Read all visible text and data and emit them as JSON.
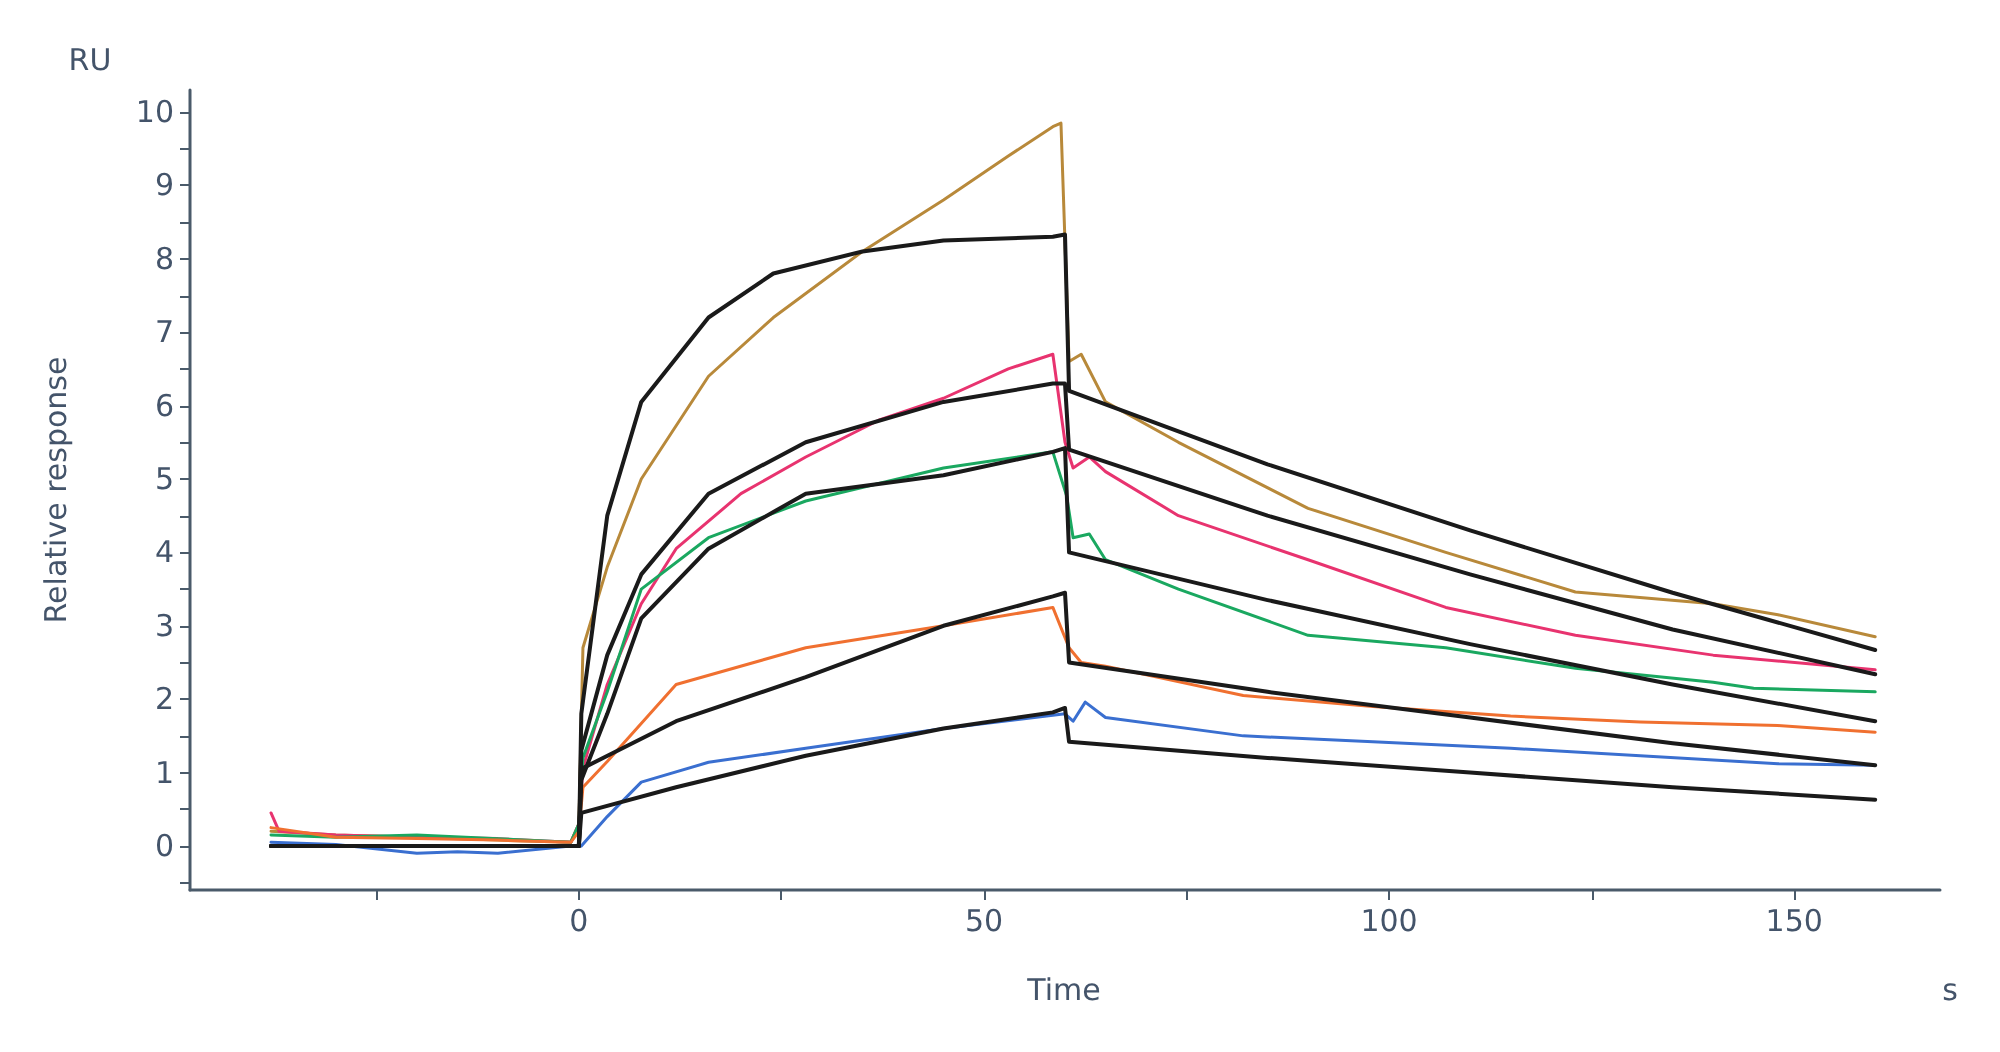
{
  "chart_data": {
    "type": "line",
    "xlabel": "Time",
    "ylabel": "Relative response",
    "annotations": [
      "RU",
      "s"
    ],
    "xlim": [
      -48,
      168
    ],
    "ylim": [
      -0.6,
      10.3
    ],
    "xticks": [
      {
        "value": -25,
        "label": null
      },
      0,
      {
        "value": 25,
        "label": null
      },
      50,
      {
        "value": 75,
        "label": null
      },
      100,
      {
        "value": 125,
        "label": null
      },
      150
    ],
    "yticks": [
      {
        "value": -0.5,
        "label": null
      },
      0,
      {
        "value": 0.5,
        "label": null
      },
      1,
      {
        "value": 1.5,
        "label": null
      },
      2,
      {
        "value": 2.5,
        "label": null
      },
      3,
      {
        "value": 3.5,
        "label": null
      },
      4,
      {
        "value": 4.5,
        "label": null
      },
      5,
      {
        "value": 5.5,
        "label": null
      },
      6,
      {
        "value": 6.5,
        "label": null
      },
      7,
      {
        "value": 7.5,
        "label": null
      },
      8,
      {
        "value": 8.5,
        "label": null
      },
      9,
      {
        "value": 9.5,
        "label": null
      },
      10
    ],
    "grid": false,
    "marker": "none",
    "line_style": "solid",
    "series": [
      {
        "color": "#b8893a",
        "x": [
          -38,
          -30,
          -20,
          -10,
          -1,
          0,
          0.5,
          3.5,
          7.7,
          16,
          24,
          35,
          45,
          53,
          58.5,
          59.5,
          60.5,
          62,
          65,
          74,
          90,
          107,
          123,
          140,
          148,
          160
        ],
        "values": [
          0.2,
          0.15,
          0.12,
          0.08,
          0.05,
          0.3,
          2.7,
          3.8,
          5.0,
          6.4,
          7.2,
          8.1,
          8.8,
          9.4,
          9.8,
          9.85,
          6.6,
          6.7,
          6.05,
          5.5,
          4.6,
          4.0,
          3.46,
          3.3,
          3.15,
          2.85
        ]
      },
      {
        "color": "#e8336f",
        "x": [
          -38,
          -37,
          -30,
          -20,
          -10,
          -1,
          0,
          0.5,
          3.5,
          7.7,
          12,
          20,
          28,
          37,
          45,
          53,
          58.5,
          60,
          61,
          63,
          65,
          74,
          90,
          107,
          123,
          140,
          160
        ],
        "values": [
          0.45,
          0.2,
          0.15,
          0.12,
          0.1,
          0.05,
          0.3,
          1.06,
          2.2,
          3.3,
          4.05,
          4.8,
          5.3,
          5.8,
          6.1,
          6.5,
          6.7,
          5.5,
          5.15,
          5.3,
          5.1,
          4.5,
          3.9,
          3.25,
          2.87,
          2.6,
          2.4
        ]
      },
      {
        "color": "#1aa860",
        "x": [
          -38,
          -30,
          -20,
          -10,
          -1,
          0,
          0.5,
          3.5,
          7.7,
          16,
          28,
          45,
          58.5,
          60.2,
          61,
          63,
          65,
          74,
          90,
          107,
          123,
          140,
          145,
          160
        ],
        "values": [
          0.15,
          0.12,
          0.15,
          0.1,
          0.05,
          0.3,
          1.2,
          2.1,
          3.5,
          4.2,
          4.7,
          5.15,
          5.37,
          4.77,
          4.2,
          4.25,
          3.9,
          3.5,
          2.87,
          2.7,
          2.42,
          2.23,
          2.15,
          2.1
        ]
      },
      {
        "color": "#f07030",
        "x": [
          -38,
          -30,
          -20,
          -10,
          -1,
          0,
          0.5,
          3.5,
          12,
          28,
          45,
          58.5,
          60.5,
          62,
          65,
          82,
          98,
          115,
          131,
          148,
          160
        ],
        "values": [
          0.25,
          0.12,
          0.1,
          0.08,
          0.05,
          0.2,
          0.8,
          1.15,
          2.2,
          2.7,
          3.0,
          3.25,
          2.7,
          2.5,
          2.45,
          2.05,
          1.9,
          1.77,
          1.69,
          1.64,
          1.55
        ]
      },
      {
        "color": "#3a6fd0",
        "x": [
          -38,
          -30,
          -20,
          -15,
          -10,
          -1,
          0.3,
          3.5,
          7.7,
          16,
          28,
          45,
          58.5,
          60,
          61,
          62.5,
          65,
          82,
          98,
          115,
          131,
          148,
          160
        ],
        "values": [
          0.05,
          0.02,
          -0.1,
          -0.08,
          -0.1,
          0,
          0,
          0.4,
          0.87,
          1.14,
          1.33,
          1.6,
          1.78,
          1.8,
          1.7,
          1.96,
          1.75,
          1.5,
          1.42,
          1.33,
          1.23,
          1.12,
          1.1
        ]
      },
      {
        "color": "#1a1a1a",
        "x": [
          -38,
          0,
          0.3,
          3.5,
          7.7,
          16,
          24,
          35,
          45,
          58.5,
          60,
          60.5,
          85,
          110,
          135,
          160
        ],
        "values": [
          0,
          0,
          1.8,
          4.5,
          6.05,
          7.2,
          7.8,
          8.1,
          8.25,
          8.3,
          8.33,
          6.2,
          5.2,
          4.3,
          3.45,
          2.67
        ]
      },
      {
        "color": "#1a1a1a",
        "x": [
          -38,
          0,
          0.3,
          3.5,
          7.7,
          16,
          28,
          45,
          58.5,
          60,
          60.5,
          85,
          110,
          135,
          160
        ],
        "values": [
          0,
          0,
          1.3,
          2.6,
          3.7,
          4.8,
          5.5,
          6.05,
          6.3,
          6.3,
          5.4,
          4.5,
          3.7,
          2.95,
          2.34
        ]
      },
      {
        "color": "#1a1a1a",
        "x": [
          -38,
          0,
          0.3,
          3.5,
          7.7,
          16,
          28,
          45,
          58.5,
          60,
          60.5,
          85,
          110,
          135,
          160
        ],
        "values": [
          0,
          0,
          0.9,
          1.8,
          3.1,
          4.05,
          4.8,
          5.05,
          5.37,
          5.42,
          4.0,
          3.35,
          2.75,
          2.2,
          1.7
        ]
      },
      {
        "color": "#1a1a1a",
        "x": [
          -38,
          0,
          0.3,
          12,
          28,
          45,
          58.5,
          60,
          60.5,
          85,
          110,
          135,
          160
        ],
        "values": [
          0,
          0,
          1.05,
          1.7,
          2.3,
          3.0,
          3.4,
          3.45,
          2.5,
          2.1,
          1.75,
          1.4,
          1.1
        ]
      },
      {
        "color": "#1a1a1a",
        "x": [
          -38,
          0,
          0.3,
          12,
          28,
          45,
          58.5,
          60,
          60.5,
          85,
          110,
          135,
          160
        ],
        "values": [
          0,
          0,
          0.45,
          0.8,
          1.23,
          1.6,
          1.82,
          1.88,
          1.42,
          1.2,
          1.0,
          0.8,
          0.63
        ]
      }
    ]
  }
}
